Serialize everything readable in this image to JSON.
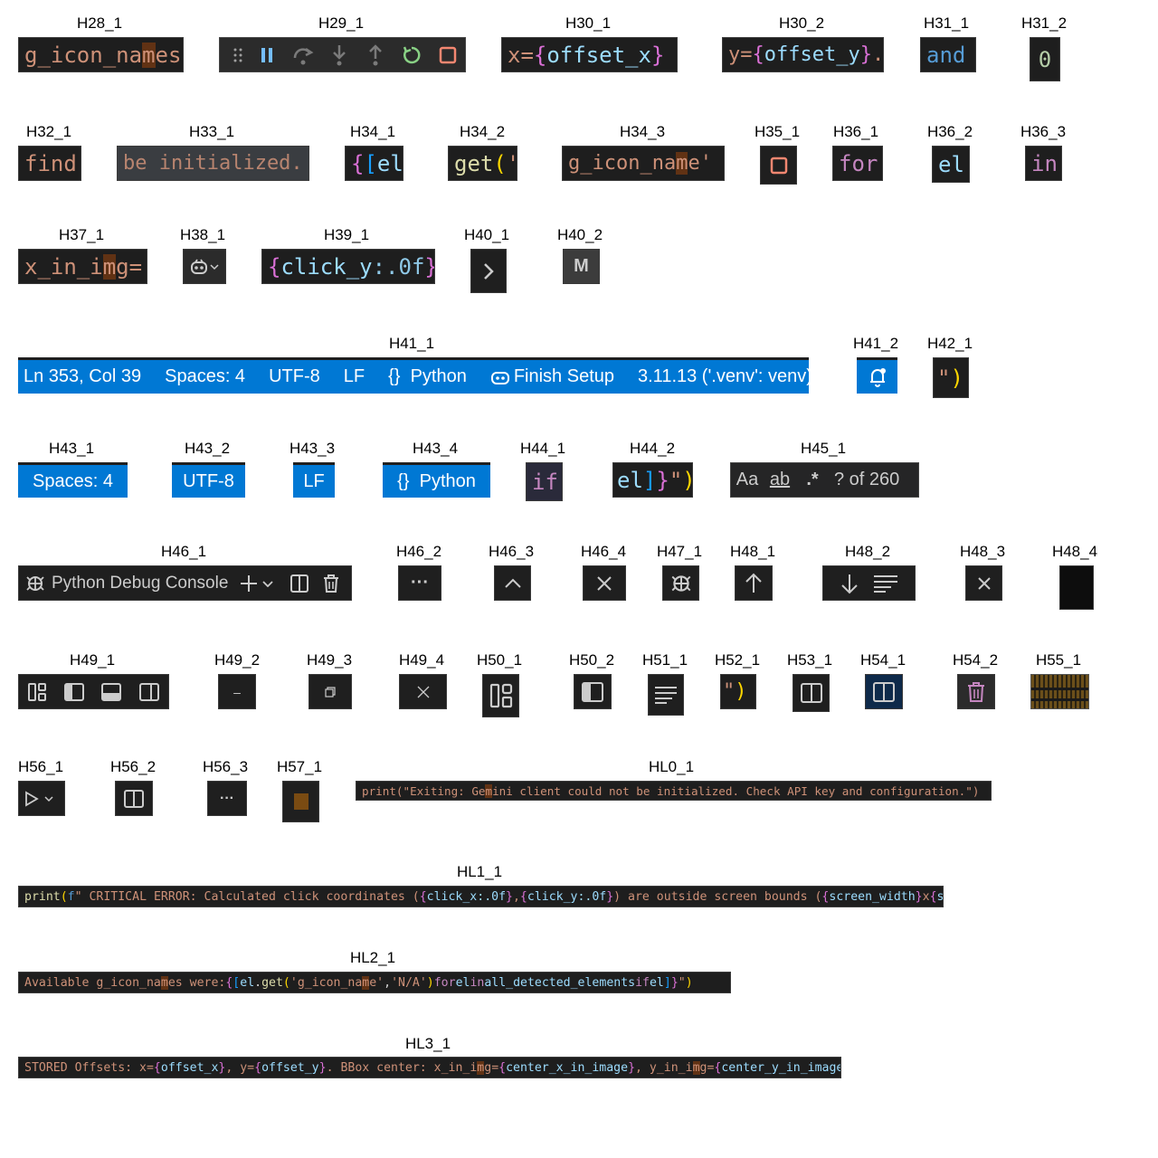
{
  "captions": {
    "H28_1": "H28_1",
    "H29_1": "H29_1",
    "H30_1": "H30_1",
    "H30_2": "H30_2",
    "H31_1": "H31_1",
    "H31_2": "H31_2",
    "H32_1": "H32_1",
    "H33_1": "H33_1",
    "H34_1": "H34_1",
    "H34_2": "H34_2",
    "H34_3": "H34_3",
    "H35_1": "H35_1",
    "H36_1": "H36_1",
    "H36_2": "H36_2",
    "H36_3": "H36_3",
    "H37_1": "H37_1",
    "H38_1": "H38_1",
    "H39_1": "H39_1",
    "H40_1": "H40_1",
    "H40_2": "H40_2",
    "H41_1": "H41_1",
    "H41_2": "H41_2",
    "H42_1": "H42_1",
    "H43_1": "H43_1",
    "H43_2": "H43_2",
    "H43_3": "H43_3",
    "H43_4": "H43_4",
    "H44_1": "H44_1",
    "H44_2": "H44_2",
    "H45_1": "H45_1",
    "H46_1": "H46_1",
    "H46_2": "H46_2",
    "H46_3": "H46_3",
    "H46_4": "H46_4",
    "H47_1": "H47_1",
    "H48_1": "H48_1",
    "H48_2": "H48_2",
    "H48_3": "H48_3",
    "H48_4": "H48_4",
    "H49_1": "H49_1",
    "H49_2": "H49_2",
    "H49_3": "H49_3",
    "H49_4": "H49_4",
    "H50_1": "H50_1",
    "H50_2": "H50_2",
    "H51_1": "H51_1",
    "H52_1": "H52_1",
    "H53_1": "H53_1",
    "H54_1": "H54_1",
    "H54_2": "H54_2",
    "H55_1": "H55_1",
    "H56_1": "H56_1",
    "H56_2": "H56_2",
    "H56_3": "H56_3",
    "H57_1": "H57_1",
    "HL0_1": "HL0_1",
    "HL1_1": "HL1_1",
    "HL2_1": "HL2_1",
    "HL3_1": "HL3_1"
  },
  "code": {
    "h28_a": "g_icon_na",
    "h28_b": "m",
    "h28_c": "es",
    "h30_1_a": "x=",
    "h30_1_b": "{",
    "h30_1_c": "offset_x",
    "h30_1_d": "}",
    "h30_2_a": "y=",
    "h30_2_b": "{",
    "h30_2_c": "offset_y",
    "h30_2_d": "}",
    "h30_2_e": ".",
    "h31_1": "and",
    "h31_2": "0",
    "h32": "find",
    "h33": "be initialized.",
    "h34_1_a": "{",
    "h34_1_b": "[",
    "h34_1_c": "el",
    "h34_2_a": "get",
    "h34_2_b": "(",
    "h34_2_c": "'",
    "h34_3_a": "g_icon_na",
    "h34_3_b": "m",
    "h34_3_c": "e'",
    "h36_1": "for",
    "h36_2": "el",
    "h36_3": "in",
    "h37_a": "x_in_i",
    "h37_b": "m",
    "h37_c": "g=",
    "h39_a": "{",
    "h39_b": "click_y",
    "h39_c": ":.0f",
    "h39_d": "}",
    "h39_e": ")",
    "h42_a": "\"",
    "h42_b": ")",
    "h44_1": "if",
    "h44_2_a": "el",
    "h44_2_b": "]",
    "h44_2_c": "}",
    "h44_2_d": "\"",
    "h44_2_e": ")",
    "h52_a": "\"",
    "h52_b": ")"
  },
  "status_bar": {
    "ln_col": "Ln 353, Col 39",
    "spaces": "Spaces: 4",
    "encoding": "UTF-8",
    "eol": "LF",
    "language_icon": "{}",
    "language": "Python",
    "finish_setup": "Finish Setup",
    "interpreter": "3.11.13 ('.venv': venv)"
  },
  "status_items": {
    "spaces": "Spaces: 4",
    "encoding": "UTF-8",
    "eol": "LF",
    "language_icon": "{}",
    "language": "Python"
  },
  "find_widget": {
    "match_case": "Aa",
    "whole_word": "ab",
    "regex": ".*",
    "result": "? of 260"
  },
  "panel": {
    "title": "Python Debug Console",
    "more": "···"
  },
  "misc": {
    "h40_2_letter": "M",
    "h49_2_minimize": "–",
    "h56_3_more": "···"
  },
  "lines": {
    "hl0": {
      "a": "print(\"Exiting: Ge",
      "b": "m",
      "c": "ini client could not be initialized. Check API key and configuration.\")"
    },
    "hl1": {
      "print": "print",
      "p1": "(",
      "f": "f",
      "str1": "\"  CRITICAL ERROR: Calculated click coordinates (",
      "b1": "{",
      "v1": "click_x",
      "fmt1": ":.0f",
      "b1e": "}",
      "sep1": ", ",
      "b2": "{",
      "v2": "click_y",
      "fmt2": ":.0f",
      "b2e": "}",
      "str2": ") are outside screen bounds (",
      "b3": "{",
      "v3": "screen_width",
      "b3e": "}",
      "x": "x",
      "b4": "{",
      "v4": "scr"
    },
    "hl2": {
      "str1": "Available g_icon_na",
      "hm": "m",
      "str2": "es were: ",
      "b1": "{",
      "b2": "[",
      "el": "el",
      "dot": ".",
      "get": "get",
      "p": "(",
      "s1": "'g_icon_na",
      "sm": "m",
      "s1b": "e'",
      "comma": ", ",
      "s2": "'N/A'",
      "pe": ")",
      "for": " for ",
      "el2": "el",
      "in": " in ",
      "all": "all_detected_elements",
      "if": " if ",
      "el3": "el",
      "b2e": "]",
      "b1e": "}",
      "q": "\"",
      "pc": ")"
    },
    "hl3": {
      "s1": "STORED Offsets: x=",
      "b1": "{",
      "v1": "offset_x",
      "b1e": "}",
      "s2": ", y=",
      "b2": "{",
      "v2": "offset_y",
      "b2e": "}",
      "s3": ". BBox center: x_in_i",
      "sm": "m",
      "s3b": "g=",
      "b3": "{",
      "v3": "center_x_in_image",
      "b3e": "}",
      "s4": ", y_in_i",
      "sm2": "m",
      "s4b": "g=",
      "b4": "{",
      "v4": "center_y_in_image",
      "b4e": "}",
      "q": "\"",
      "pc": ")"
    }
  },
  "colors": {
    "editor_bg": "#1e1e1e",
    "status_blue": "#0078d4",
    "string": "#ce9178",
    "identifier": "#9cdcfe",
    "function": "#dcdcaa",
    "keyword": "#c586c0",
    "brace_pink": "#da70d6",
    "brace_gold": "#ffd700",
    "brace_blue": "#179fff",
    "number": "#b5cea8",
    "find_highlight": "#613214",
    "restart_green": "#89d185"
  },
  "icons": {
    "debug_toolbar": [
      "gripper-icon",
      "pause-icon",
      "step-over-icon",
      "step-into-icon",
      "step-out-icon",
      "restart-icon",
      "stop-icon"
    ],
    "layout": [
      "customize-layout-icon",
      "toggle-primary-sidebar-icon",
      "toggle-panel-icon",
      "toggle-secondary-sidebar-icon"
    ]
  }
}
